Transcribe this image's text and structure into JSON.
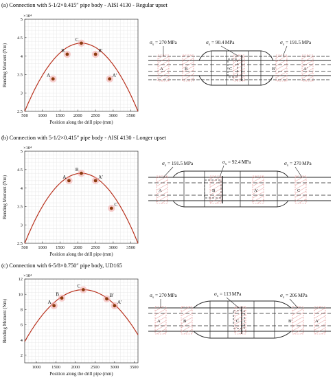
{
  "panels": [
    {
      "title": "(a) Connection with 5-1/2×0.415″ pipe body - AISI 4130 - Regular upset",
      "chart": {
        "xlabel": "Position along the drill pipe (mm)",
        "ylabel": "Bending Moment (Nm)",
        "multiplier": "×10⁴",
        "xlim": [
          500,
          3700
        ],
        "ylim": [
          2.5,
          5
        ],
        "xticks": [
          "500",
          "1000",
          "1500",
          "2000",
          "2500",
          "3000",
          "3500"
        ],
        "yticks": [
          "2.5",
          "3",
          "3.5",
          "4",
          "4.5",
          "5"
        ],
        "curve_peak": {
          "x": 2100,
          "y": 4.35
        },
        "curve_ends": {
          "x0": 500,
          "y0": 2.5,
          "x1": 3700,
          "y1": 2.5
        },
        "points": [
          {
            "label": "A",
            "x": 1300,
            "y": 3.38
          },
          {
            "label": "B",
            "x": 1700,
            "y": 4.05
          },
          {
            "label": "C",
            "x": 2100,
            "y": 4.35
          },
          {
            "label": "B′",
            "x": 2500,
            "y": 4.05
          },
          {
            "label": "A′",
            "x": 2900,
            "y": 3.38
          }
        ]
      },
      "stresses": [
        {
          "value": " = 270 MPa"
        },
        {
          "value": " = 90.4 MPa"
        },
        {
          "value": " = 191.5 MPa"
        }
      ],
      "section_labels": [
        "A",
        "B",
        "C",
        "B′",
        "A′"
      ]
    },
    {
      "title": "(b) Connection with 5-1/2×0.415″ pipe body - AISI 4130 - Longer upset",
      "chart": {
        "xlabel": "Position along the drill pipe (mm)",
        "ylabel": "Bending Moment (Nm)",
        "multiplier": "×10⁴",
        "xlim": [
          500,
          3700
        ],
        "ylim": [
          2.5,
          5
        ],
        "xticks": [
          "500",
          "1000",
          "1500",
          "2000",
          "2500",
          "3000",
          "3500"
        ],
        "yticks": [
          "2.5",
          "3",
          "3.5",
          "4",
          "4.5",
          "5"
        ],
        "curve_peak": {
          "x": 2100,
          "y": 4.4
        },
        "curve_ends": {
          "x0": 500,
          "y0": 2.5,
          "x1": 3700,
          "y1": 2.5
        },
        "points": [
          {
            "label": "A",
            "x": 1750,
            "y": 4.2
          },
          {
            "label": "B",
            "x": 2100,
            "y": 4.4
          },
          {
            "label": "A′",
            "x": 2500,
            "y": 4.2
          },
          {
            "label": "C",
            "x": 2950,
            "y": 3.45
          }
        ]
      },
      "stresses": [
        {
          "value": " = 191.5 MPa"
        },
        {
          "value": " = 92.4 MPa"
        },
        {
          "value": " = 270 MPa"
        }
      ],
      "section_labels": [
        "A",
        "B",
        "A′",
        "C"
      ]
    },
    {
      "title": "(c) Connection with 6-5/8×0.750″ pipe body, UD165",
      "chart": {
        "xlabel": "Position along the drill pipe (mm)",
        "ylabel": "Bending Moment (Nm)",
        "multiplier": "×10⁴",
        "xlim": [
          700,
          3600
        ],
        "ylim": [
          1,
          12
        ],
        "xticks": [
          "1000",
          "1500",
          "2000",
          "2500",
          "3000",
          "3500"
        ],
        "yticks": [
          "2",
          "4",
          "6",
          "8",
          "10",
          "12"
        ],
        "curve_peak": {
          "x": 2200,
          "y": 10.6
        },
        "curve_ends": {
          "x0": 700,
          "y0": 3.8,
          "x1": 3600,
          "y1": 3.8
        },
        "points": [
          {
            "label": "A",
            "x": 1450,
            "y": 8.5
          },
          {
            "label": "B",
            "x": 1650,
            "y": 9.5
          },
          {
            "label": "C",
            "x": 2200,
            "y": 10.6
          },
          {
            "label": "B′",
            "x": 2800,
            "y": 9.4
          },
          {
            "label": "A′",
            "x": 3000,
            "y": 8.5
          }
        ]
      },
      "stresses": [
        {
          "value": " = 270 MPa"
        },
        {
          "value": " = 113 MPa"
        },
        {
          "value": " = 206 MPa"
        }
      ],
      "section_labels": [
        "A",
        "B",
        "C",
        "B′",
        "A′"
      ]
    }
  ],
  "colors": {
    "curve": "#b8321e",
    "point": "#8b3a0e",
    "halo": "#f2a8a8",
    "grid": "#e3e3e3",
    "hatch": "#e08080"
  }
}
